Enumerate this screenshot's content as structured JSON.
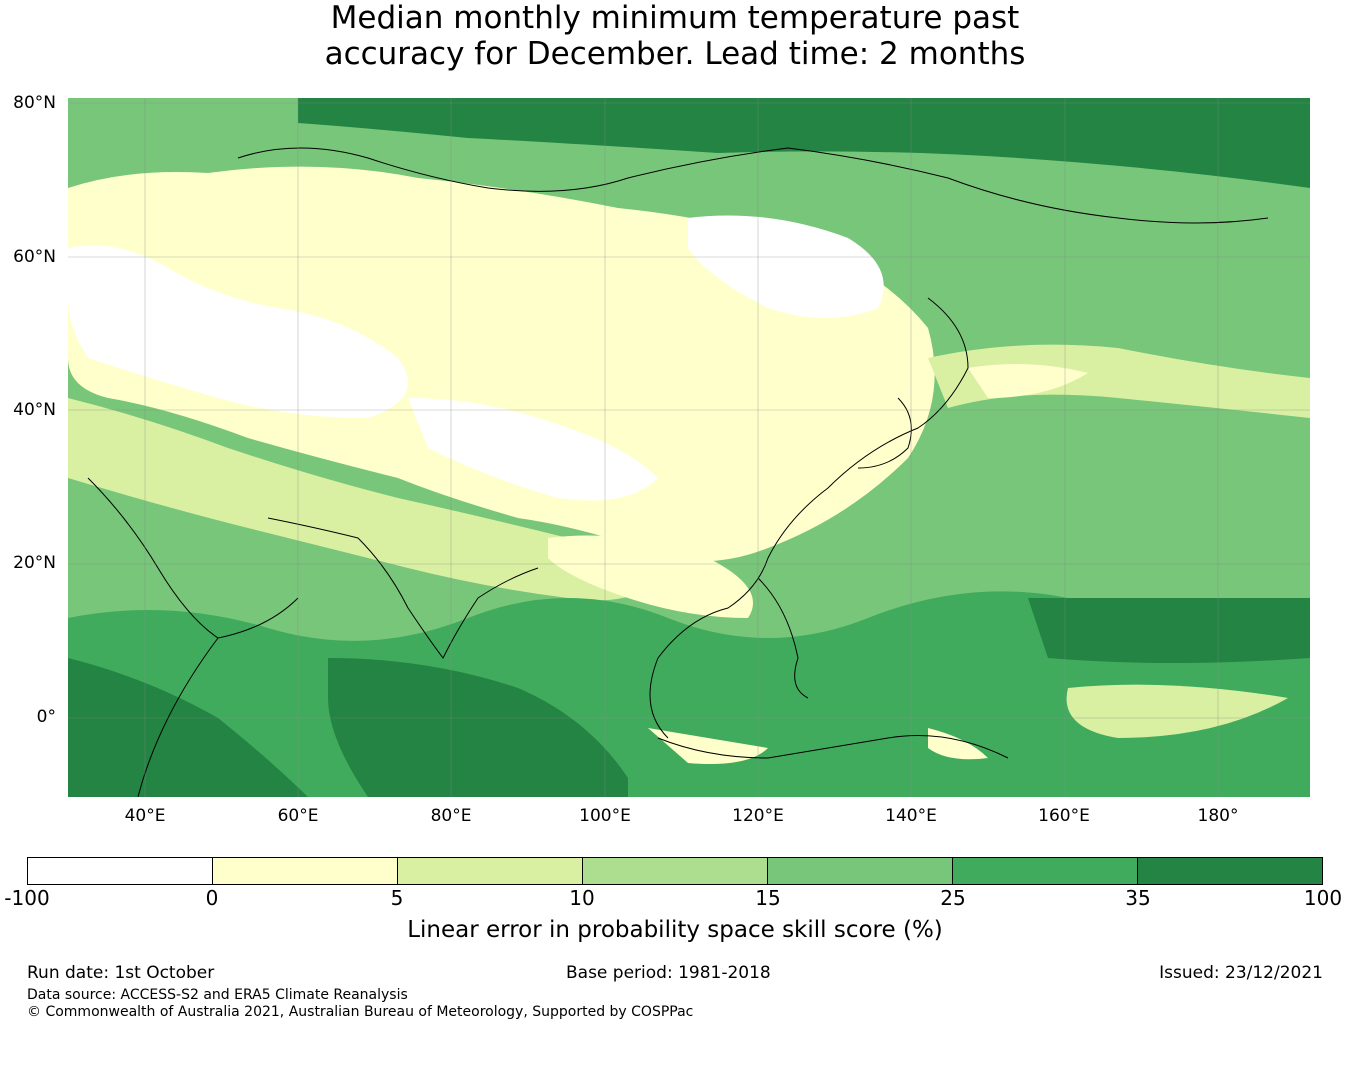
{
  "title_line1": "Median monthly minimum temperature past",
  "title_line2": "accuracy for December. Lead time: 2 months",
  "lat_labels": [
    "80°N",
    "60°N",
    "40°N",
    "20°N",
    "0°"
  ],
  "lon_labels": [
    "40°E",
    "60°E",
    "80°E",
    "100°E",
    "120°E",
    "140°E",
    "160°E",
    "180°"
  ],
  "colorbar": {
    "ticks": [
      "-100",
      "0",
      "5",
      "10",
      "15",
      "25",
      "35",
      "100"
    ],
    "colors": [
      "#ffffff",
      "#ffffcc",
      "#d9f0a3",
      "#addd8e",
      "#78c679",
      "#41ab5d",
      "#238443"
    ],
    "label": "Linear error in probability space skill score (%)"
  },
  "footer": {
    "run_date": "Run date: 1st October",
    "base_period": "Base period: 1981-2018",
    "issued": "Issued: 23/12/2021",
    "data_source": "Data source: ACCESS-S2 and ERA5 Climate Reanalysis",
    "copyright": "© Commonwealth of Australia 2021, Australian Bureau of Meteorology, Supported by COSPPac"
  }
}
